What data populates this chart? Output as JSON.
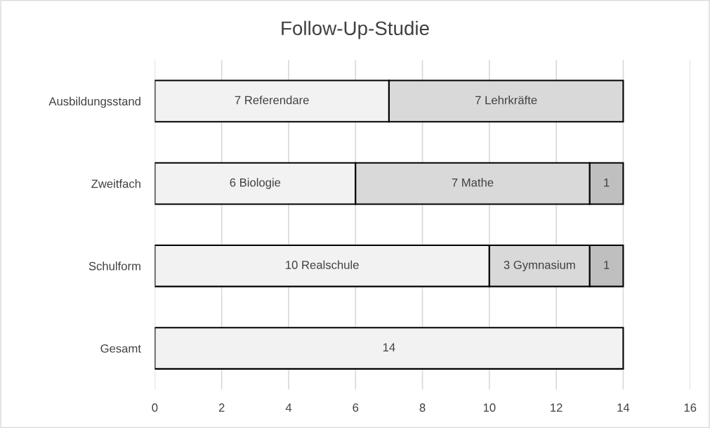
{
  "chart_data": {
    "type": "bar",
    "orientation": "horizontal",
    "stacked": true,
    "title": "Follow-Up-Studie",
    "categories": [
      "Ausbildungsstand",
      "Zweitfach",
      "Schulform",
      "Gesamt"
    ],
    "series": [
      {
        "color": "#f2f2f2",
        "values": [
          7,
          6,
          10,
          14
        ],
        "value_labels": [
          "7 Referendare",
          "6 Biologie",
          "10 Realschule",
          "14"
        ]
      },
      {
        "color": "#d9d9d9",
        "values": [
          7,
          7,
          3,
          null
        ],
        "value_labels": [
          "7 Lehrkräfte",
          "7 Mathe",
          "3 Gymnasium",
          null
        ]
      },
      {
        "color": "#bfbfbf",
        "values": [
          null,
          1,
          1,
          null
        ],
        "value_labels": [
          null,
          "1",
          "1",
          null
        ]
      }
    ],
    "xlim": [
      0,
      16
    ],
    "xticks": [
      0,
      2,
      4,
      6,
      8,
      10,
      12,
      14,
      16
    ],
    "grid": "x",
    "legend": false
  }
}
